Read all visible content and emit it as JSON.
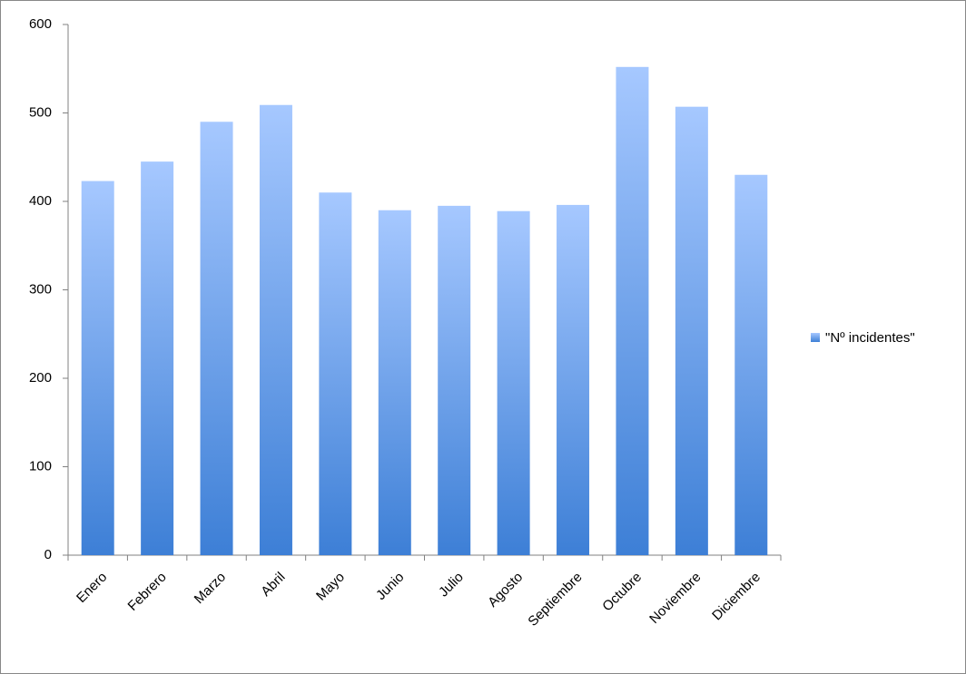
{
  "chart_data": {
    "type": "bar",
    "categories": [
      "Enero",
      "Febrero",
      "Marzo",
      "Abril",
      "Mayo",
      "Junio",
      "Julio",
      "Agosto",
      "Septiembre",
      "Octubre",
      "Noviembre",
      "Diciembre"
    ],
    "series": [
      {
        "name": "\"Nº incidentes\"",
        "color": "#3d7fd6",
        "values": [
          423,
          445,
          490,
          509,
          410,
          390,
          395,
          389,
          396,
          552,
          507,
          430
        ]
      }
    ],
    "ylim": [
      0,
      600
    ],
    "yticks": [
      0,
      100,
      200,
      300,
      400,
      500,
      600
    ],
    "grid": false,
    "legend": "right"
  }
}
